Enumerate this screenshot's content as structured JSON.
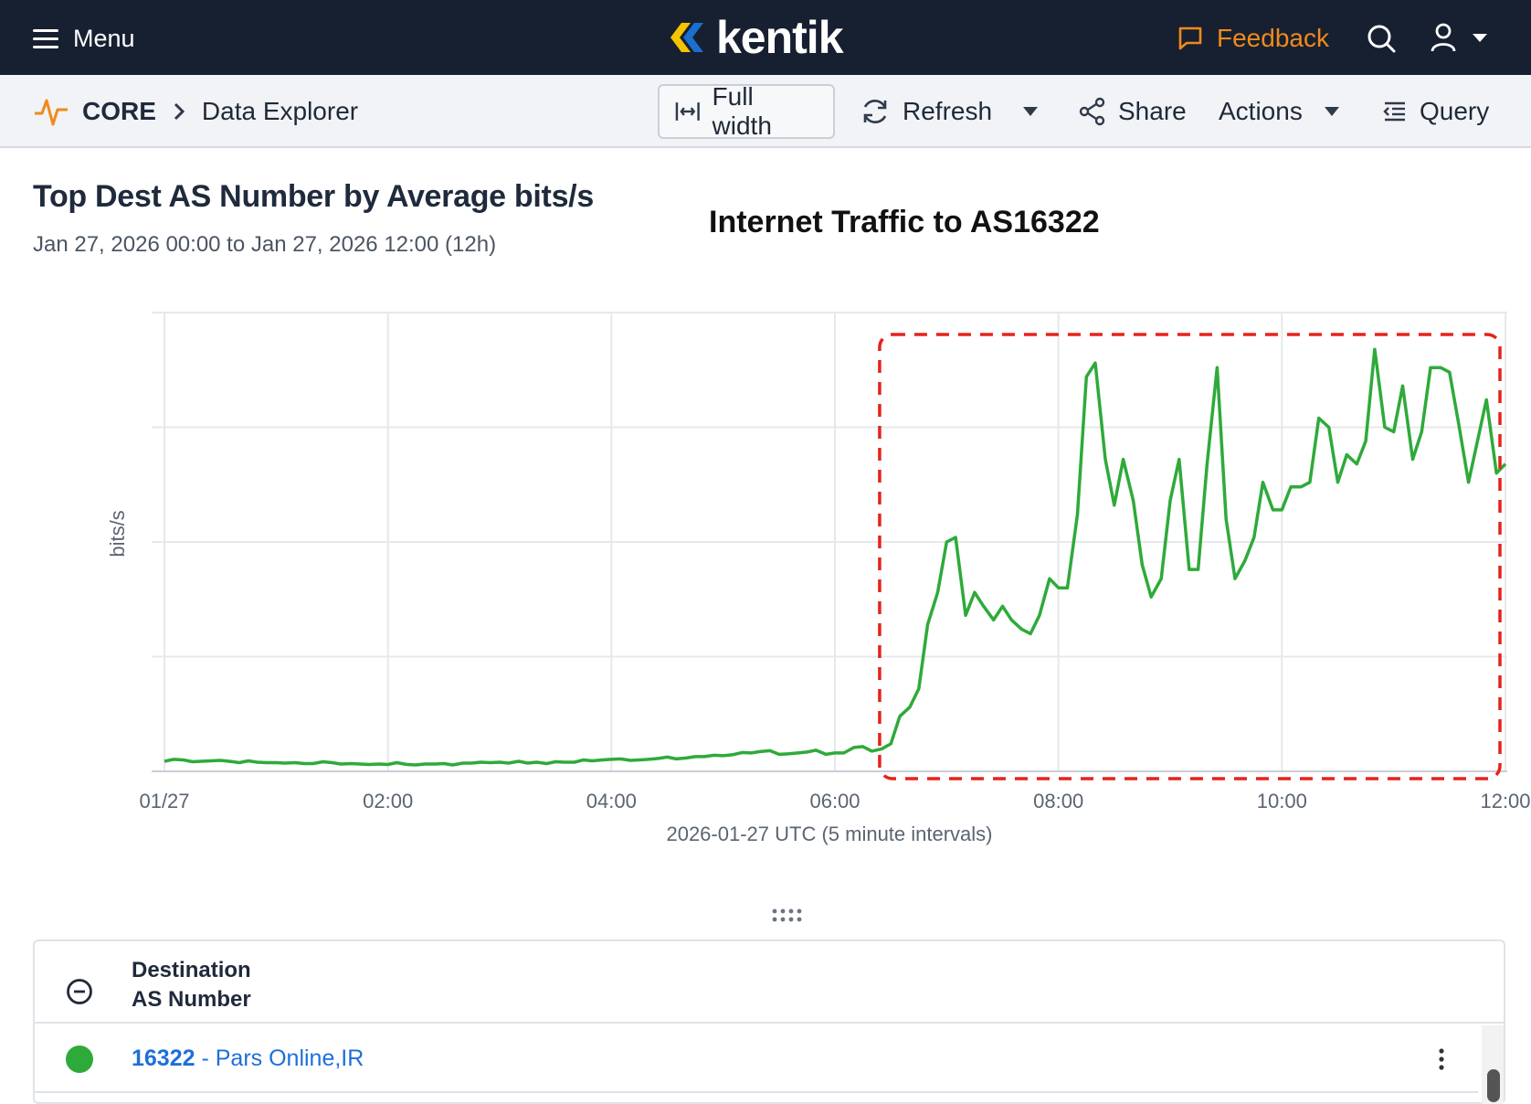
{
  "topnav": {
    "menu_label": "Menu",
    "logo_text": "kentik",
    "feedback_label": "Feedback",
    "feedback_color": "#f08a1c"
  },
  "toolbar": {
    "section": "CORE",
    "page": "Data Explorer",
    "full_width_label": "Full width",
    "refresh_label": "Refresh",
    "share_label": "Share",
    "actions_label": "Actions",
    "query_label": "Query"
  },
  "view": {
    "title": "Top Dest AS Number by Average bits/s",
    "time_range": "Jan 27, 2026 00:00 to Jan 27, 2026 12:00 (12h)",
    "overlay_title": "Internet Traffic to AS16322"
  },
  "chart_data": {
    "type": "line",
    "xlabel": "2026-01-27 UTC (5 minute intervals)",
    "ylabel": "bits/s",
    "x_tick_labels": [
      "01/27",
      "02:00",
      "04:00",
      "06:00",
      "08:00",
      "10:00",
      "12:00"
    ],
    "x_ticks_hours": [
      0,
      2,
      4,
      6,
      8,
      10,
      12
    ],
    "xlim_hours": [
      0,
      12
    ],
    "ylim_relative": [
      0,
      1
    ],
    "grid": true,
    "legend": "none",
    "y_values_note_unit": "relative (y-axis tick labels not shown)",
    "series": [
      {
        "color": "#2eaa3a",
        "x_hours": [
          0.0,
          0.08,
          0.17,
          0.25,
          0.33,
          0.42,
          0.5,
          0.58,
          0.67,
          0.75,
          0.83,
          0.92,
          1.0,
          1.08,
          1.17,
          1.25,
          1.33,
          1.42,
          1.5,
          1.58,
          1.67,
          1.75,
          1.83,
          1.92,
          2.0,
          2.08,
          2.17,
          2.25,
          2.33,
          2.42,
          2.5,
          2.58,
          2.67,
          2.75,
          2.83,
          2.92,
          3.0,
          3.08,
          3.17,
          3.25,
          3.33,
          3.42,
          3.5,
          3.58,
          3.67,
          3.75,
          3.83,
          3.92,
          4.0,
          4.08,
          4.17,
          4.25,
          4.33,
          4.42,
          4.5,
          4.58,
          4.67,
          4.75,
          4.83,
          4.92,
          5.0,
          5.08,
          5.17,
          5.25,
          5.33,
          5.42,
          5.5,
          5.58,
          5.67,
          5.75,
          5.83,
          5.92,
          6.0,
          6.08,
          6.17,
          6.25,
          6.33,
          6.42,
          6.5,
          6.58,
          6.67,
          6.75,
          6.83,
          6.92,
          7.0,
          7.08,
          7.17,
          7.25,
          7.33,
          7.42,
          7.5,
          7.58,
          7.67,
          7.75,
          7.83,
          7.92,
          8.0,
          8.08,
          8.17,
          8.25,
          8.33,
          8.42,
          8.5,
          8.58,
          8.67,
          8.75,
          8.83,
          8.92,
          9.0,
          9.08,
          9.17,
          9.25,
          9.33,
          9.42,
          9.5,
          9.58,
          9.67,
          9.75,
          9.83,
          9.92,
          10.0,
          10.08,
          10.17,
          10.25,
          10.33,
          10.42,
          10.5,
          10.58,
          10.67,
          10.75,
          10.83,
          10.92,
          11.0,
          11.08,
          11.17,
          11.25,
          11.33,
          11.42,
          11.5,
          11.58,
          11.67,
          11.75,
          11.83,
          11.92,
          12.0
        ],
        "values": [
          0.022,
          0.026,
          0.025,
          0.021,
          0.022,
          0.023,
          0.024,
          0.022,
          0.019,
          0.023,
          0.02,
          0.019,
          0.019,
          0.018,
          0.019,
          0.017,
          0.017,
          0.021,
          0.019,
          0.016,
          0.017,
          0.016,
          0.015,
          0.016,
          0.015,
          0.019,
          0.015,
          0.014,
          0.016,
          0.016,
          0.017,
          0.014,
          0.018,
          0.018,
          0.02,
          0.019,
          0.02,
          0.018,
          0.022,
          0.018,
          0.02,
          0.017,
          0.021,
          0.02,
          0.02,
          0.025,
          0.023,
          0.025,
          0.026,
          0.027,
          0.024,
          0.025,
          0.026,
          0.028,
          0.031,
          0.027,
          0.029,
          0.032,
          0.032,
          0.035,
          0.034,
          0.036,
          0.041,
          0.04,
          0.043,
          0.045,
          0.037,
          0.038,
          0.04,
          0.042,
          0.046,
          0.037,
          0.04,
          0.04,
          0.052,
          0.054,
          0.044,
          0.049,
          0.06,
          0.12,
          0.14,
          0.18,
          0.32,
          0.39,
          0.5,
          0.51,
          0.34,
          0.39,
          0.36,
          0.33,
          0.36,
          0.33,
          0.31,
          0.3,
          0.34,
          0.42,
          0.4,
          0.4,
          0.56,
          0.86,
          0.89,
          0.68,
          0.58,
          0.68,
          0.59,
          0.45,
          0.38,
          0.42,
          0.59,
          0.68,
          0.44,
          0.44,
          0.67,
          0.88,
          0.55,
          0.42,
          0.46,
          0.51,
          0.63,
          0.57,
          0.57,
          0.62,
          0.62,
          0.63,
          0.77,
          0.75,
          0.63,
          0.69,
          0.67,
          0.72,
          0.92,
          0.75,
          0.74,
          0.84,
          0.68,
          0.74,
          0.88,
          0.88,
          0.87,
          0.76,
          0.63,
          0.72,
          0.81,
          0.65,
          0.67
        ]
      }
    ],
    "highlight_box": {
      "x_start_hours": 6.4,
      "x_end_hours": 12.0,
      "color": "#e5231b",
      "style": "dashed"
    }
  },
  "table": {
    "header_line1": "Destination",
    "header_line2": "AS Number",
    "rows": [
      {
        "as_number": "16322",
        "separator": " - ",
        "name": "Pars Online,IR",
        "color": "#2eaa3a"
      }
    ]
  }
}
